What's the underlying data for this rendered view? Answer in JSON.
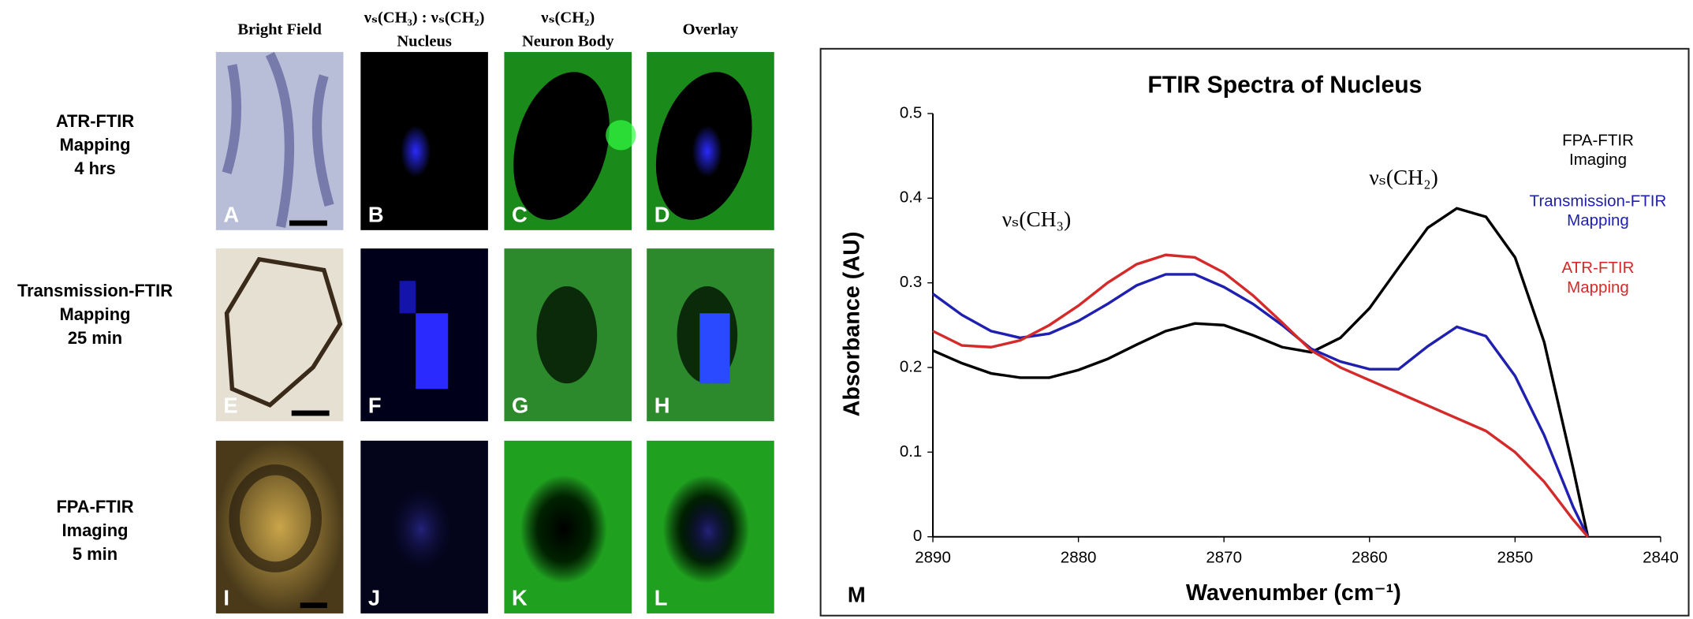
{
  "panels": {
    "column_headers": [
      "Bright Field",
      "νₛ(CH₃) : νₛ(CH₂)\nNucleus",
      "νₛ(CH₂)\nNeuron Body",
      "Overlay"
    ],
    "row_labels": [
      "ATR-FTIR\nMapping\n4 hrs",
      "Transmission-FTIR\nMapping\n25 min",
      "FPA-FTIR\nImaging\n5 min"
    ],
    "letters": [
      "A",
      "B",
      "C",
      "D",
      "E",
      "F",
      "G",
      "H",
      "I",
      "J",
      "K",
      "L"
    ]
  },
  "chart_data": {
    "type": "line",
    "panel_label": "M",
    "title": "FTIR Spectra of Nucleus",
    "x_label": "Wavenumber (cm⁻¹)",
    "y_label": "Absorbance (AU)",
    "annotations": [
      "νₛ(CH₃)",
      "νₛ(CH₂)"
    ],
    "xlim": [
      2890,
      2840
    ],
    "ylim": [
      0,
      0.5
    ],
    "xticks": [
      2890,
      2880,
      2870,
      2860,
      2850,
      2840
    ],
    "yticks": [
      0,
      0.1,
      0.2,
      0.3,
      0.4,
      0.5
    ],
    "x": [
      2890,
      2888,
      2886,
      2884,
      2882,
      2880,
      2878,
      2876,
      2874,
      2872,
      2870,
      2868,
      2866,
      2864,
      2862,
      2860,
      2858,
      2856,
      2854,
      2852,
      2850,
      2848,
      2846,
      2845
    ],
    "series": [
      {
        "name": "FPA-FTIR\nImaging",
        "color": "#000000",
        "values": [
          0.22,
          0.205,
          0.193,
          0.188,
          0.188,
          0.197,
          0.21,
          0.227,
          0.243,
          0.252,
          0.25,
          0.238,
          0.224,
          0.218,
          0.235,
          0.27,
          0.318,
          0.365,
          0.388,
          0.378,
          0.33,
          0.23,
          0.08,
          0
        ]
      },
      {
        "name": "Transmission-FTIR\nMapping",
        "color": "#1f1fb0",
        "values": [
          0.287,
          0.262,
          0.243,
          0.235,
          0.24,
          0.255,
          0.275,
          0.297,
          0.31,
          0.31,
          0.295,
          0.275,
          0.25,
          0.222,
          0.207,
          0.198,
          0.198,
          0.225,
          0.248,
          0.237,
          0.19,
          0.12,
          0.035,
          0
        ]
      },
      {
        "name": "ATR-FTIR\nMapping",
        "color": "#d42a2a",
        "values": [
          0.243,
          0.226,
          0.224,
          0.232,
          0.25,
          0.273,
          0.3,
          0.322,
          0.333,
          0.33,
          0.312,
          0.285,
          0.253,
          0.22,
          0.2,
          0.185,
          0.17,
          0.155,
          0.14,
          0.125,
          0.1,
          0.065,
          0.02,
          0
        ]
      }
    ]
  }
}
